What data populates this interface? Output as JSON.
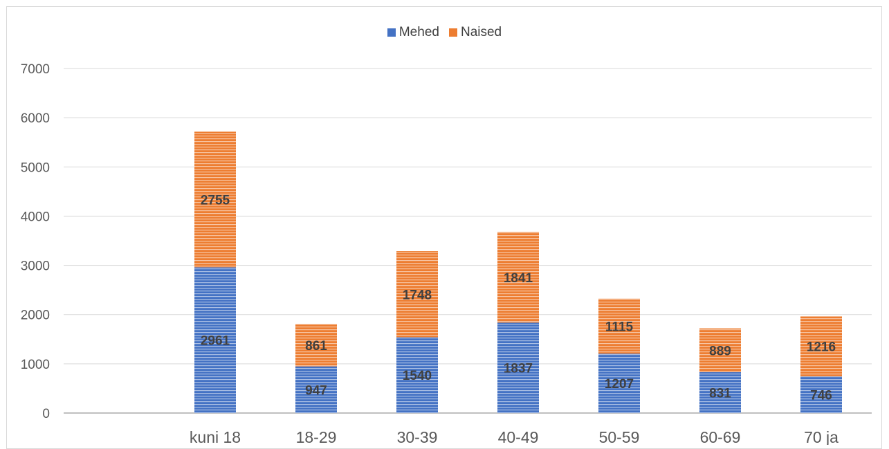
{
  "chart_data": {
    "type": "bar",
    "stacked": true,
    "title": "",
    "xlabel": "",
    "ylabel": "",
    "categories": [
      "kuni 18",
      "18-29",
      "30-39",
      "40-49",
      "50-59",
      "60-69",
      "70 ja"
    ],
    "series": [
      {
        "name": "Mehed",
        "values": [
          2961,
          947,
          1540,
          1837,
          1207,
          831,
          746
        ],
        "color": "#4472c4"
      },
      {
        "name": "Naised",
        "values": [
          2755,
          861,
          1748,
          1841,
          1115,
          889,
          1216
        ],
        "color": "#ed7d31"
      }
    ],
    "ylim": [
      0,
      7000
    ],
    "yticks": [
      0,
      1000,
      2000,
      3000,
      4000,
      5000,
      6000,
      7000
    ],
    "grid": true,
    "legend_position": "top-center",
    "bar_pattern": "horizontal-lines",
    "data_labels": true
  }
}
